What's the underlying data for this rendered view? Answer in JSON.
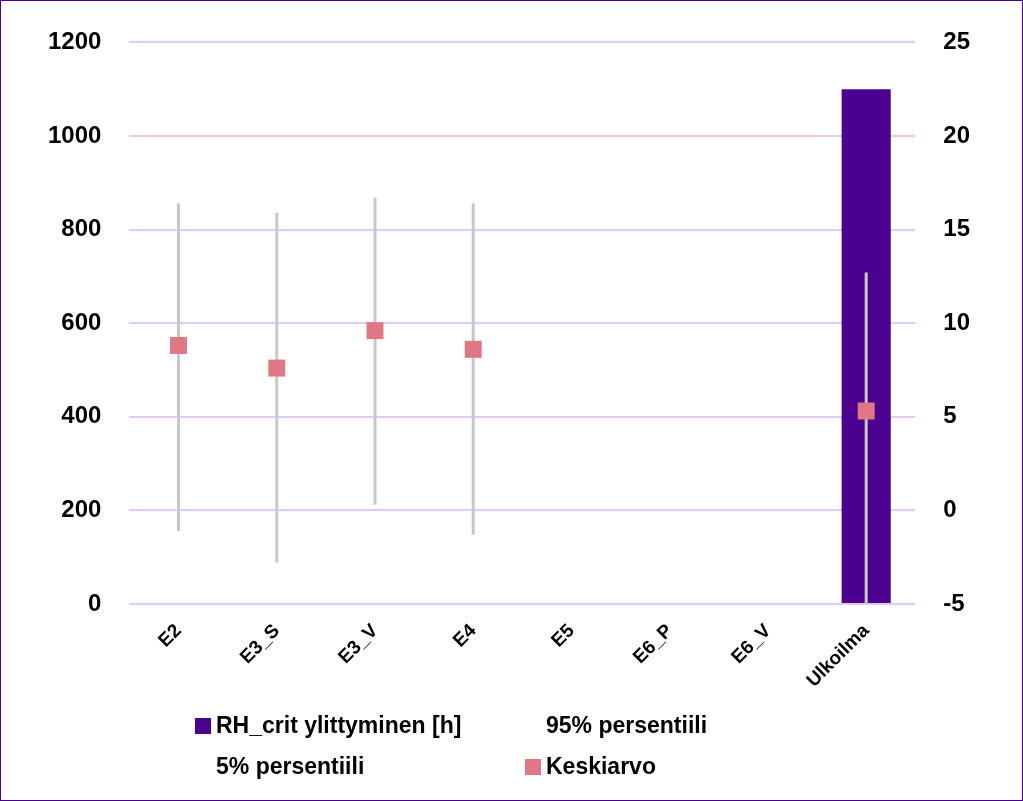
{
  "chart_data": {
    "type": "bar",
    "categories": [
      "E2",
      "E3_S",
      "E3_V",
      "E4",
      "E5",
      "E6_P",
      "E6_V",
      "Ulkoilma"
    ],
    "series": [
      {
        "name": "RH_crit ylittyminen [h]",
        "color": "#4b0090",
        "values": [
          null,
          null,
          null,
          null,
          null,
          null,
          null,
          1100
        ]
      },
      {
        "name": "Keskiarvo",
        "type": "scatter",
        "marker": "square",
        "axis": "y2",
        "color": "#e07785",
        "values": [
          8.8,
          7.6,
          9.6,
          8.6,
          null,
          null,
          null,
          5.3
        ],
        "errors": [
          [
            -1.1,
            16.4
          ],
          [
            -2.8,
            15.9
          ],
          [
            0.3,
            16.7
          ],
          [
            -1.3,
            16.4
          ],
          null,
          null,
          null,
          [
            -5,
            12.7
          ]
        ]
      }
    ],
    "annotations": [
      "95% persentiili",
      "5% persentiili"
    ],
    "ylim": [
      0,
      1200
    ],
    "yticks": [
      0,
      200,
      400,
      600,
      800,
      1000,
      1200
    ],
    "y2lim": [
      -5,
      25
    ],
    "y2ticks": [
      -5,
      0,
      5,
      10,
      15,
      20,
      25
    ],
    "grid": "y",
    "legend": "bottom"
  }
}
